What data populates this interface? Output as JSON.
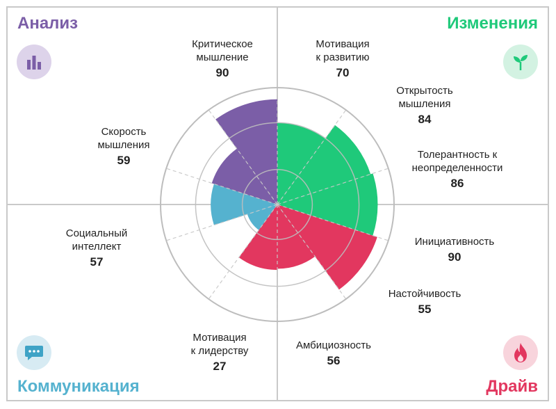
{
  "quadrants": {
    "analysis": {
      "title": "Анализ",
      "color": "#7b5ea7",
      "icon": "bar-chart-icon"
    },
    "change": {
      "title": "Изменения",
      "color": "#1fc97a",
      "icon": "sprout-icon"
    },
    "communication": {
      "title": "Коммуникация",
      "color": "#55b2cf",
      "icon": "chat-bubble-icon"
    },
    "drive": {
      "title": "Драйв",
      "color": "#e2375f",
      "icon": "flame-icon"
    }
  },
  "chart_data": {
    "type": "polar-area",
    "rlim": [
      0,
      100
    ],
    "grid": true,
    "categories": [
      {
        "label_lines": [
          "Мотивация",
          "к развитию"
        ],
        "value": 70,
        "group": "change"
      },
      {
        "label_lines": [
          "Открытость",
          "мышления"
        ],
        "value": 84,
        "group": "change"
      },
      {
        "label_lines": [
          "Толерантность к",
          "неопределенности"
        ],
        "value": 86,
        "group": "change"
      },
      {
        "label_lines": [
          "Инициативность"
        ],
        "value": 90,
        "group": "drive"
      },
      {
        "label_lines": [
          "Настойчивость"
        ],
        "value": 55,
        "group": "drive"
      },
      {
        "label_lines": [
          "Амбициозность"
        ],
        "value": 56,
        "group": "drive"
      },
      {
        "label_lines": [
          "Мотивация",
          "к лидерству"
        ],
        "value": 27,
        "group": "communication"
      },
      {
        "label_lines": [
          "Социальный",
          "интеллект"
        ],
        "value": 57,
        "group": "communication"
      },
      {
        "label_lines": [
          "Скорость",
          "мышления"
        ],
        "value": 59,
        "group": "analysis"
      },
      {
        "label_lines": [
          "Критическое",
          "мышление"
        ],
        "value": 90,
        "group": "analysis"
      }
    ]
  }
}
